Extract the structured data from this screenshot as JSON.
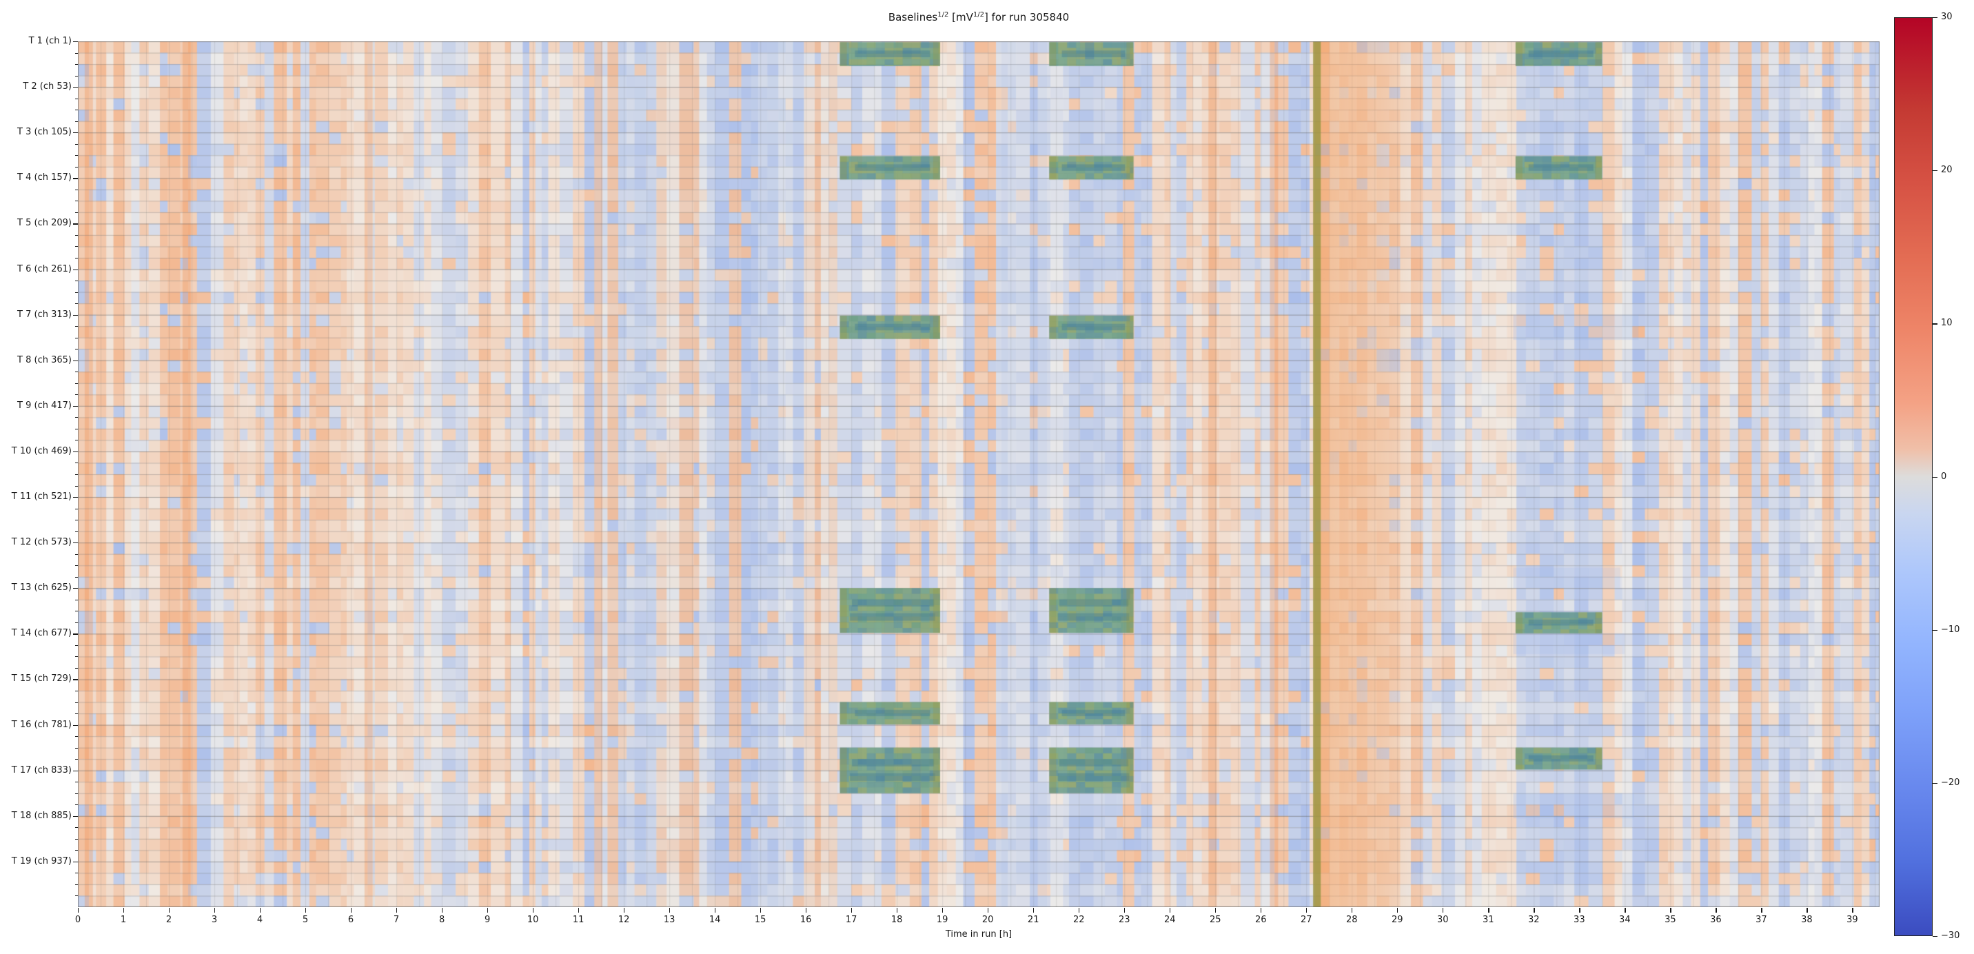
{
  "figure": {
    "title": {
      "base": "Baselines",
      "sup1": "1/2",
      "mid": " [mV",
      "sup2": "1/2",
      "tail": "] for run 305840"
    }
  },
  "y_axis": {
    "labels": [
      "T 1 (ch 1)",
      "T 2 (ch 53)",
      "T 3 (ch 105)",
      "T 4 (ch 157)",
      "T 5 (ch 209)",
      "T 6 (ch 261)",
      "T 7 (ch 313)",
      "T 8 (ch 365)",
      "T 9 (ch 417)",
      "T 10 (ch 469)",
      "T 11 (ch 521)",
      "T 12 (ch 573)",
      "T 13 (ch 625)",
      "T 14 (ch 677)",
      "T 15 (ch 729)",
      "T 16 (ch 781)",
      "T 17 (ch 833)",
      "T 18 (ch 885)",
      "T 19 (ch 937)"
    ]
  },
  "x_axis": {
    "label": "Time in run [h]",
    "ticks": [
      "0",
      "1",
      "2",
      "3",
      "4",
      "5",
      "6",
      "7",
      "8",
      "9",
      "10",
      "11",
      "12",
      "13",
      "14",
      "15",
      "16",
      "17",
      "18",
      "19",
      "20",
      "21",
      "22",
      "23",
      "24",
      "25",
      "26",
      "27",
      "28",
      "29",
      "30",
      "31",
      "32",
      "33",
      "34",
      "35",
      "36",
      "37",
      "38",
      "39"
    ]
  },
  "colorbar": {
    "ticks": [
      "30",
      "20",
      "10",
      "0",
      "−10",
      "−20",
      "−30"
    ],
    "values": [
      30,
      20,
      10,
      0,
      -10,
      -20,
      -30
    ],
    "top_color": "#b40426",
    "mid_color": "#dddcdb",
    "bottom_color": "#3b4cc0"
  },
  "chart_data": {
    "type": "heatmap",
    "title": "Baselines^(1/2) [mV^(1/2)] for run 305840",
    "xlabel": "Time in run [h]",
    "x_range_hours": [
      0,
      39.6
    ],
    "x_tick_values": [
      0,
      1,
      2,
      3,
      4,
      5,
      6,
      7,
      8,
      9,
      10,
      11,
      12,
      13,
      14,
      15,
      16,
      17,
      18,
      19,
      20,
      21,
      22,
      23,
      24,
      25,
      26,
      27,
      28,
      29,
      30,
      31,
      32,
      33,
      34,
      35,
      36,
      37,
      38,
      39
    ],
    "y_description": "988 detector channels, 19 towers of 52 channels, T1 (ch 1) at top to T19 (ch 937) at bottom, minor gridlines every 13 channels",
    "row_labels": [
      "T 1 (ch 1)",
      "T 2 (ch 53)",
      "T 3 (ch 105)",
      "T 4 (ch 157)",
      "T 5 (ch 209)",
      "T 6 (ch 261)",
      "T 7 (ch 313)",
      "T 8 (ch 365)",
      "T 9 (ch 417)",
      "T 10 (ch 469)",
      "T 11 (ch 521)",
      "T 12 (ch 573)",
      "T 13 (ch 625)",
      "T 14 (ch 677)",
      "T 15 (ch 729)",
      "T 16 (ch 781)",
      "T 17 (ch 833)",
      "T 18 (ch 885)",
      "T 19 (ch 937)"
    ],
    "value_range": [
      -30,
      30
    ],
    "colormap": "coolwarm",
    "background": {
      "description": "fine vertical striping of near-zero baseline values alternating pale blue and pale orange, ~12 min wide time bins",
      "pale_blue": "#c9d7f3",
      "pale_orange": "#f6cbae",
      "neutral": "#e9e6e2",
      "orange_bias": [
        [
          0,
          2.1,
          0.7
        ],
        [
          2.1,
          3.4,
          0.55
        ],
        [
          3.4,
          11.2,
          0.62
        ],
        [
          11.2,
          16.7,
          0.34
        ],
        [
          16.7,
          19.5,
          0.38
        ],
        [
          19.5,
          21.5,
          0.26
        ],
        [
          21.5,
          24.5,
          0.4
        ],
        [
          24.5,
          27.15,
          0.52
        ],
        [
          27.15,
          29.6,
          0.97
        ],
        [
          29.6,
          31.5,
          0.5
        ],
        [
          31.5,
          33.6,
          0.33
        ],
        [
          33.6,
          37.5,
          0.52
        ],
        [
          37.5,
          39.6,
          0.45
        ]
      ],
      "strong_orange_columns_hours": [
        0.15,
        2.3,
        6.3,
        11.35,
        24.85,
        26.2
      ]
    },
    "features": {
      "note": "teal-green rectangular blocks (calibration periods) overlaid on selected tower rows; olive vertical line at ~27.2 h followed by a broad warm orange band until ~29.6 h",
      "calibration_block_color": "#6f9e85",
      "calibration_blocks": [
        {
          "hours": [
            16.75,
            18.95
          ],
          "towers": [
            1.02,
            1.54
          ]
        },
        {
          "hours": [
            21.35,
            23.2
          ],
          "towers": [
            1.02,
            1.54
          ]
        },
        {
          "hours": [
            31.6,
            33.5
          ],
          "towers": [
            1.02,
            1.54
          ]
        },
        {
          "hours": [
            16.75,
            18.95
          ],
          "towers": [
            3.52,
            4.03
          ]
        },
        {
          "hours": [
            21.35,
            23.2
          ],
          "towers": [
            3.52,
            4.03
          ]
        },
        {
          "hours": [
            31.6,
            33.5
          ],
          "towers": [
            3.52,
            4.03
          ]
        },
        {
          "hours": [
            16.75,
            18.95
          ],
          "towers": [
            7.02,
            7.53
          ]
        },
        {
          "hours": [
            21.35,
            23.2
          ],
          "towers": [
            7.02,
            7.53
          ]
        },
        {
          "hours": [
            16.75,
            18.95
          ],
          "towers": [
            13.0,
            13.98
          ]
        },
        {
          "hours": [
            21.35,
            23.2
          ],
          "towers": [
            13.0,
            13.98
          ]
        },
        {
          "hours": [
            31.6,
            33.5
          ],
          "towers": [
            13.53,
            13.99
          ]
        },
        {
          "hours": [
            16.75,
            18.95
          ],
          "towers": [
            15.5,
            15.99
          ]
        },
        {
          "hours": [
            21.35,
            23.2
          ],
          "towers": [
            15.5,
            15.99
          ]
        },
        {
          "hours": [
            16.75,
            18.95
          ],
          "towers": [
            16.5,
            17.5
          ]
        },
        {
          "hours": [
            21.35,
            23.2
          ],
          "towers": [
            16.5,
            17.5
          ]
        },
        {
          "hours": [
            31.6,
            33.5
          ],
          "towers": [
            16.5,
            16.98
          ]
        }
      ],
      "olive_line_hours": [
        27.15,
        27.32
      ],
      "olive_line_color": "#9f9542",
      "orange_band_hours": [
        27.32,
        29.6
      ],
      "blue_patches": [
        {
          "hours": [
            31.55,
            34.3
          ],
          "towers": [
            7.0,
            7.55
          ],
          "alpha": 0.22
        },
        {
          "hours": [
            31.55,
            33.9
          ],
          "towers": [
            12.55,
            13.0
          ],
          "alpha": 0.18
        },
        {
          "hours": [
            31.55,
            34.0
          ],
          "towers": [
            13.99,
            14.45
          ],
          "alpha": 0.18
        },
        {
          "hours": [
            31.55,
            34.2
          ],
          "towers": [
            17.5,
            18.05
          ],
          "alpha": 0.22
        },
        {
          "hours": [
            20.3,
            21.3
          ],
          "towers": [
            1.0,
            20.0
          ],
          "alpha": 0.1
        },
        {
          "hours": [
            11.5,
            16.7
          ],
          "towers": [
            1.0,
            20.0
          ],
          "alpha": 0.05
        }
      ]
    },
    "legend_position": "right colorbar",
    "grid": "thin gray horizontal lines every 13 channels, faint vertical lines every 0.5 h"
  }
}
